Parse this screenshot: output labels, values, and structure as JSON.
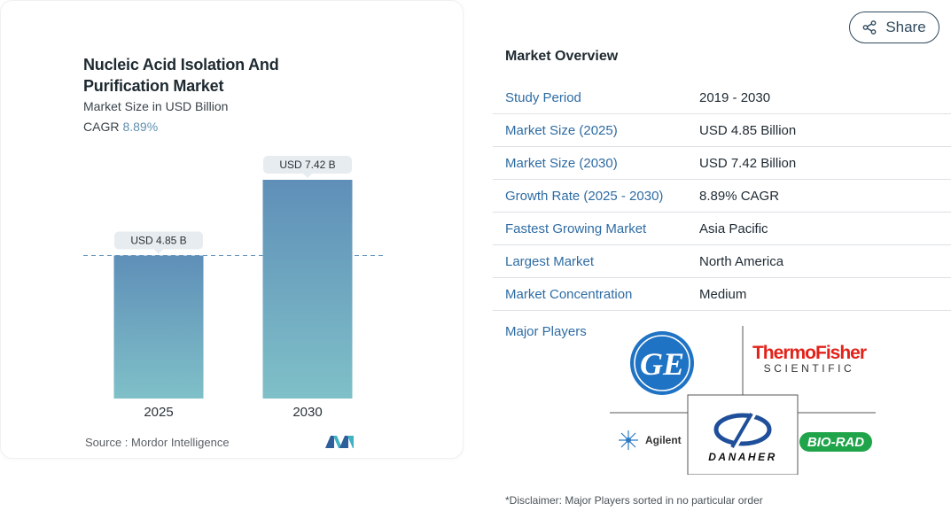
{
  "chart": {
    "title": "Nucleic Acid Isolation And Purification Market",
    "subtitle": "Market Size in USD Billion",
    "cagr_label": "CAGR",
    "cagr_value": "8.89%",
    "source": "Source :  Mordor Intelligence"
  },
  "chart_data": {
    "type": "bar",
    "title": "Nucleic Acid Isolation And Purification Market",
    "subtitle": "Market Size in USD Billion",
    "categories": [
      "2025",
      "2030"
    ],
    "values": [
      4.85,
      7.42
    ],
    "data_labels": [
      "USD 4.85 B",
      "USD 7.42 B"
    ],
    "ylim": [
      0,
      7.42
    ],
    "xlabel": "",
    "ylabel": "",
    "grid": false,
    "reference_line": 4.85,
    "bar_gradient": [
      "#5f8fb8",
      "#7fc0c8"
    ]
  },
  "share": {
    "label": "Share",
    "icon": "share-icon"
  },
  "overview": {
    "title": "Market Overview",
    "rows": [
      {
        "label": "Study Period",
        "value": "2019 - 2030"
      },
      {
        "label": "Market Size (2025)",
        "value": "USD 4.85 Billion"
      },
      {
        "label": "Market Size (2030)",
        "value": "USD 7.42 Billion"
      },
      {
        "label": "Growth Rate (2025 - 2030)",
        "value": "8.89% CAGR"
      },
      {
        "label": "Fastest Growing Market",
        "value": "Asia Pacific"
      },
      {
        "label": "Largest Market",
        "value": "North America"
      },
      {
        "label": "Market Concentration",
        "value": "Medium"
      }
    ]
  },
  "players": {
    "label": "Major Players",
    "logos": [
      "GE",
      "Thermo Fisher SCIENTIFIC",
      "Agilent",
      "DANAHER",
      "BIO-RAD"
    ],
    "disclaimer": "*Disclaimer: Major Players sorted in no particular order"
  },
  "colors": {
    "accent_blue": "#2e6ca4",
    "cagr_blue": "#5f8fae",
    "ge_blue": "#1f73c4",
    "thermo_red": "#e2231a",
    "biorad_green": "#1fa44a",
    "danaher_blue": "#1f4f9a"
  }
}
